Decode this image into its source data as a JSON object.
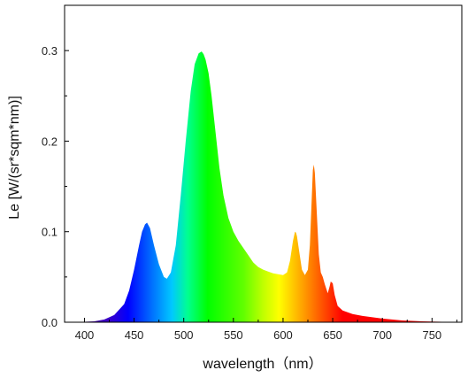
{
  "chart_data": {
    "type": "area",
    "title": "",
    "xlabel": "wavelength（nm）",
    "ylabel": "Le [W/(sr*sqm*nm)]",
    "xlim": [
      380,
      780
    ],
    "ylim": [
      0,
      0.35
    ],
    "x_ticks": [
      400,
      450,
      500,
      550,
      600,
      650,
      700,
      750
    ],
    "x_tick_labels": [
      "400",
      "450",
      "500",
      "550",
      "600",
      "650",
      "700",
      "750"
    ],
    "y_ticks": [
      0.0,
      0.1,
      0.2,
      0.3
    ],
    "y_tick_labels": [
      "0.0",
      "0.1",
      "0.2",
      "0.3"
    ],
    "grid": false,
    "legend": "none",
    "fill": "visible-spectrum-gradient",
    "series": [
      {
        "x": [
          380,
          400,
          410,
          420,
          430,
          440,
          445,
          450,
          455,
          458,
          461,
          463,
          466,
          470,
          475,
          480,
          483,
          487,
          492,
          497,
          502,
          507,
          511,
          515,
          518,
          520,
          522,
          525,
          528,
          532,
          536,
          540,
          545,
          550,
          555,
          560,
          565,
          570,
          575,
          580,
          585,
          590,
          595,
          600,
          604,
          607,
          610,
          612,
          613,
          614,
          616,
          619,
          622,
          625,
          627,
          629,
          630,
          631,
          632,
          634,
          636,
          638,
          640,
          642,
          645,
          647,
          648,
          650,
          652,
          655,
          660,
          665,
          670,
          680,
          700,
          720,
          740,
          760,
          780
        ],
        "y": [
          0.0,
          0.0005,
          0.001,
          0.003,
          0.008,
          0.02,
          0.035,
          0.058,
          0.085,
          0.1,
          0.108,
          0.11,
          0.104,
          0.085,
          0.064,
          0.05,
          0.048,
          0.055,
          0.085,
          0.14,
          0.2,
          0.255,
          0.285,
          0.297,
          0.299,
          0.296,
          0.29,
          0.275,
          0.25,
          0.21,
          0.17,
          0.14,
          0.115,
          0.1,
          0.09,
          0.082,
          0.074,
          0.066,
          0.061,
          0.058,
          0.056,
          0.054,
          0.053,
          0.052,
          0.055,
          0.068,
          0.09,
          0.1,
          0.099,
          0.095,
          0.08,
          0.058,
          0.052,
          0.058,
          0.085,
          0.14,
          0.168,
          0.174,
          0.165,
          0.12,
          0.075,
          0.055,
          0.05,
          0.042,
          0.032,
          0.04,
          0.045,
          0.043,
          0.03,
          0.018,
          0.013,
          0.011,
          0.009,
          0.007,
          0.004,
          0.002,
          0.001,
          0.0005,
          0.0003
        ]
      }
    ]
  }
}
